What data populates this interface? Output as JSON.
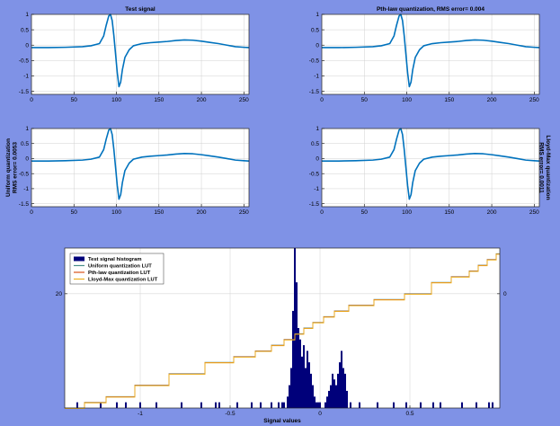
{
  "colors": {
    "figure_bg": "#7f92e6",
    "axes_bg": "#ffffff",
    "signal": "#0072bd",
    "histogram": "#00007a",
    "uniform_lut": "#4a8f8a",
    "pth_lut": "#d95319",
    "lloyd_lut": "#edb120",
    "grid": "#d0d0d0"
  },
  "chart_data": [
    {
      "id": "test-signal",
      "type": "line",
      "title": "Test signal",
      "ylabel": "",
      "xlim": [
        0,
        256
      ],
      "ylim": [
        -1.6,
        1.0
      ],
      "xticks": [
        0,
        50,
        100,
        150,
        200,
        250
      ],
      "yticks": [
        1,
        0.5,
        0,
        -0.5,
        -1,
        -1.5
      ],
      "grid": true,
      "series": [
        {
          "x": [
            0,
            20,
            40,
            60,
            70,
            80,
            85,
            88,
            91,
            93,
            95,
            97,
            99,
            101,
            103,
            105,
            107,
            110,
            115,
            120,
            130,
            140,
            150,
            160,
            170,
            180,
            190,
            200,
            210,
            220,
            230,
            240,
            250,
            256
          ],
          "values": [
            -0.08,
            -0.08,
            -0.07,
            -0.05,
            -0.02,
            0.05,
            0.3,
            0.65,
            0.95,
            1.0,
            0.8,
            0.3,
            -0.3,
            -0.9,
            -1.35,
            -1.2,
            -0.8,
            -0.4,
            -0.15,
            -0.02,
            0.05,
            0.08,
            0.1,
            0.12,
            0.15,
            0.17,
            0.16,
            0.13,
            0.09,
            0.05,
            0.0,
            -0.05,
            -0.07,
            -0.08
          ]
        }
      ]
    },
    {
      "id": "pth-law",
      "type": "line",
      "title": "Pth-law quantization, RMS error= 0.004",
      "ylabel": "",
      "xlim": [
        0,
        256
      ],
      "ylim": [
        -1.6,
        1.0
      ],
      "xticks": [
        0,
        50,
        100,
        150,
        200,
        250
      ],
      "yticks": [
        1,
        0.5,
        0,
        -0.5,
        -1,
        -1.5
      ],
      "grid": true,
      "series": [
        {
          "x": [
            0,
            20,
            40,
            60,
            70,
            80,
            85,
            88,
            91,
            93,
            95,
            97,
            99,
            101,
            103,
            105,
            107,
            110,
            115,
            120,
            130,
            140,
            150,
            160,
            170,
            180,
            190,
            200,
            210,
            220,
            230,
            240,
            250,
            256
          ],
          "values": [
            -0.08,
            -0.08,
            -0.07,
            -0.05,
            -0.02,
            0.05,
            0.3,
            0.65,
            0.95,
            1.0,
            0.8,
            0.3,
            -0.3,
            -0.9,
            -1.35,
            -1.2,
            -0.8,
            -0.4,
            -0.15,
            -0.02,
            0.05,
            0.08,
            0.1,
            0.12,
            0.15,
            0.17,
            0.16,
            0.13,
            0.09,
            0.05,
            0.0,
            -0.05,
            -0.07,
            -0.08
          ]
        }
      ]
    },
    {
      "id": "uniform",
      "type": "line",
      "title": "",
      "ylabel": "Uniform quantization\nRMS error= 0.0053",
      "ylabel_side": "left",
      "xlim": [
        0,
        256
      ],
      "ylim": [
        -1.6,
        1.0
      ],
      "xticks": [
        0,
        50,
        100,
        150,
        200,
        250
      ],
      "yticks": [
        1,
        0.5,
        0,
        -0.5,
        -1,
        -1.5
      ],
      "grid": true,
      "series": [
        {
          "x": [
            0,
            20,
            40,
            60,
            70,
            80,
            85,
            88,
            91,
            93,
            95,
            97,
            99,
            101,
            103,
            105,
            107,
            110,
            115,
            120,
            130,
            140,
            150,
            160,
            170,
            180,
            190,
            200,
            210,
            220,
            230,
            240,
            250,
            256
          ],
          "values": [
            -0.08,
            -0.08,
            -0.07,
            -0.05,
            -0.02,
            0.05,
            0.3,
            0.65,
            0.95,
            1.0,
            0.8,
            0.3,
            -0.3,
            -0.9,
            -1.35,
            -1.2,
            -0.8,
            -0.4,
            -0.15,
            -0.02,
            0.05,
            0.08,
            0.1,
            0.12,
            0.15,
            0.17,
            0.16,
            0.13,
            0.09,
            0.05,
            0.0,
            -0.05,
            -0.07,
            -0.08
          ]
        }
      ]
    },
    {
      "id": "lloyd-max",
      "type": "line",
      "title": "",
      "ylabel": "Lloyd-Max quantization\nRMS error= 0.0011",
      "ylabel_side": "right",
      "xlim": [
        0,
        256
      ],
      "ylim": [
        -1.6,
        1.0
      ],
      "xticks": [
        0,
        50,
        100,
        150,
        200,
        250
      ],
      "yticks": [
        1,
        0.5,
        0,
        -0.5,
        -1,
        -1.5
      ],
      "grid": true,
      "series": [
        {
          "x": [
            0,
            20,
            40,
            60,
            70,
            80,
            85,
            88,
            91,
            93,
            95,
            97,
            99,
            101,
            103,
            105,
            107,
            110,
            115,
            120,
            130,
            140,
            150,
            160,
            170,
            180,
            190,
            200,
            210,
            220,
            230,
            240,
            250,
            256
          ],
          "values": [
            -0.08,
            -0.08,
            -0.07,
            -0.05,
            -0.02,
            0.05,
            0.3,
            0.65,
            0.95,
            1.0,
            0.8,
            0.3,
            -0.3,
            -0.9,
            -1.35,
            -1.2,
            -0.8,
            -0.4,
            -0.15,
            -0.02,
            0.05,
            0.08,
            0.1,
            0.12,
            0.15,
            0.17,
            0.16,
            0.13,
            0.09,
            0.05,
            0.0,
            -0.05,
            -0.07,
            -0.08
          ]
        }
      ]
    },
    {
      "id": "histogram-lut",
      "type": "bar",
      "title": "",
      "xlabel": "Signal values",
      "ylabel": "",
      "xlim": [
        -1.42,
        1.0
      ],
      "ylim": [
        0,
        28
      ],
      "xticks": [
        -1,
        -0.5,
        0,
        0.5
      ],
      "xtick_labels": [
        "-1",
        "-0.5",
        "0",
        "0.5"
      ],
      "yticks": [
        20
      ],
      "right_tick_label": "0",
      "grid": true,
      "legend": {
        "placement": "top-left",
        "entries": [
          "Test signal histogram",
          "Uniform quantization LUT",
          "Pth-law quantization LUT",
          "Lloyd-Max quantization LUT"
        ]
      },
      "histogram": {
        "name": "Test signal histogram",
        "bin_width": 0.01,
        "centers": [
          -1.35,
          -1.22,
          -1.13,
          -1.08,
          -1.0,
          -0.91,
          -0.77,
          -0.66,
          -0.58,
          -0.56,
          -0.46,
          -0.38,
          -0.33,
          -0.27,
          -0.23,
          -0.21,
          -0.2,
          -0.18,
          -0.17,
          -0.16,
          -0.15,
          -0.14,
          -0.13,
          -0.12,
          -0.11,
          -0.1,
          -0.09,
          -0.08,
          -0.07,
          -0.06,
          -0.05,
          -0.04,
          -0.03,
          -0.02,
          -0.01,
          0.0,
          0.03,
          0.04,
          0.05,
          0.06,
          0.07,
          0.08,
          0.09,
          0.1,
          0.11,
          0.12,
          0.13,
          0.14,
          0.15,
          0.17,
          0.22,
          0.32,
          0.41,
          0.48,
          0.56,
          0.63,
          0.67,
          0.79,
          0.87,
          0.94,
          0.96
        ],
        "values": [
          1,
          1,
          1,
          1,
          1,
          1,
          1,
          1,
          1,
          1,
          1,
          1,
          1,
          1,
          1,
          1,
          1,
          2,
          4,
          7,
          17,
          28,
          22,
          14,
          12,
          9,
          11,
          7,
          10,
          8,
          6,
          4,
          2,
          1,
          1,
          1,
          1,
          2,
          3,
          4,
          6,
          5,
          4,
          6,
          8,
          10,
          7,
          6,
          3,
          1,
          1,
          1,
          1,
          1,
          1,
          1,
          1,
          1,
          1,
          1,
          1
        ]
      },
      "luts": [
        {
          "name": "Uniform quantization LUT",
          "color": "#4a8f8a",
          "breaks": [
            -1.42,
            -1.31,
            -1.19,
            -1.03,
            -0.84,
            -0.64,
            -0.48,
            -0.36,
            -0.27,
            -0.2,
            -0.14,
            -0.09,
            -0.04,
            0.02,
            0.08,
            0.16,
            0.3,
            0.47,
            0.62,
            0.73,
            0.83,
            0.88,
            0.93,
            0.98,
            1.0
          ],
          "levels": [
            0,
            1,
            2,
            4,
            6,
            8,
            9,
            10,
            11,
            12,
            13,
            14,
            15,
            16,
            17,
            18,
            19,
            20,
            22,
            23,
            24,
            25,
            26,
            27
          ]
        },
        {
          "name": "Pth-law quantization LUT",
          "color": "#d95319",
          "breaks": [
            -1.42,
            -1.31,
            -1.19,
            -1.03,
            -0.84,
            -0.64,
            -0.48,
            -0.36,
            -0.27,
            -0.2,
            -0.14,
            -0.09,
            -0.04,
            0.02,
            0.08,
            0.16,
            0.3,
            0.47,
            0.62,
            0.73,
            0.83,
            0.88,
            0.93,
            0.98,
            1.0
          ],
          "levels": [
            0,
            1,
            2,
            4,
            6,
            8,
            9,
            10,
            11,
            12,
            13,
            14,
            15,
            16,
            17,
            18,
            19,
            20,
            22,
            23,
            24,
            25,
            26,
            27
          ]
        },
        {
          "name": "Lloyd-Max quantization LUT",
          "color": "#edb120",
          "breaks": [
            -1.42,
            -1.31,
            -1.19,
            -1.03,
            -0.84,
            -0.64,
            -0.48,
            -0.36,
            -0.27,
            -0.2,
            -0.14,
            -0.09,
            -0.04,
            0.02,
            0.08,
            0.16,
            0.3,
            0.47,
            0.62,
            0.73,
            0.83,
            0.88,
            0.93,
            0.98,
            1.0
          ],
          "levels": [
            0,
            1,
            2,
            4,
            6,
            8,
            9,
            10,
            11,
            12,
            13,
            14,
            15,
            16,
            17,
            18,
            19,
            20,
            22,
            23,
            24,
            25,
            26,
            27
          ]
        }
      ]
    }
  ]
}
